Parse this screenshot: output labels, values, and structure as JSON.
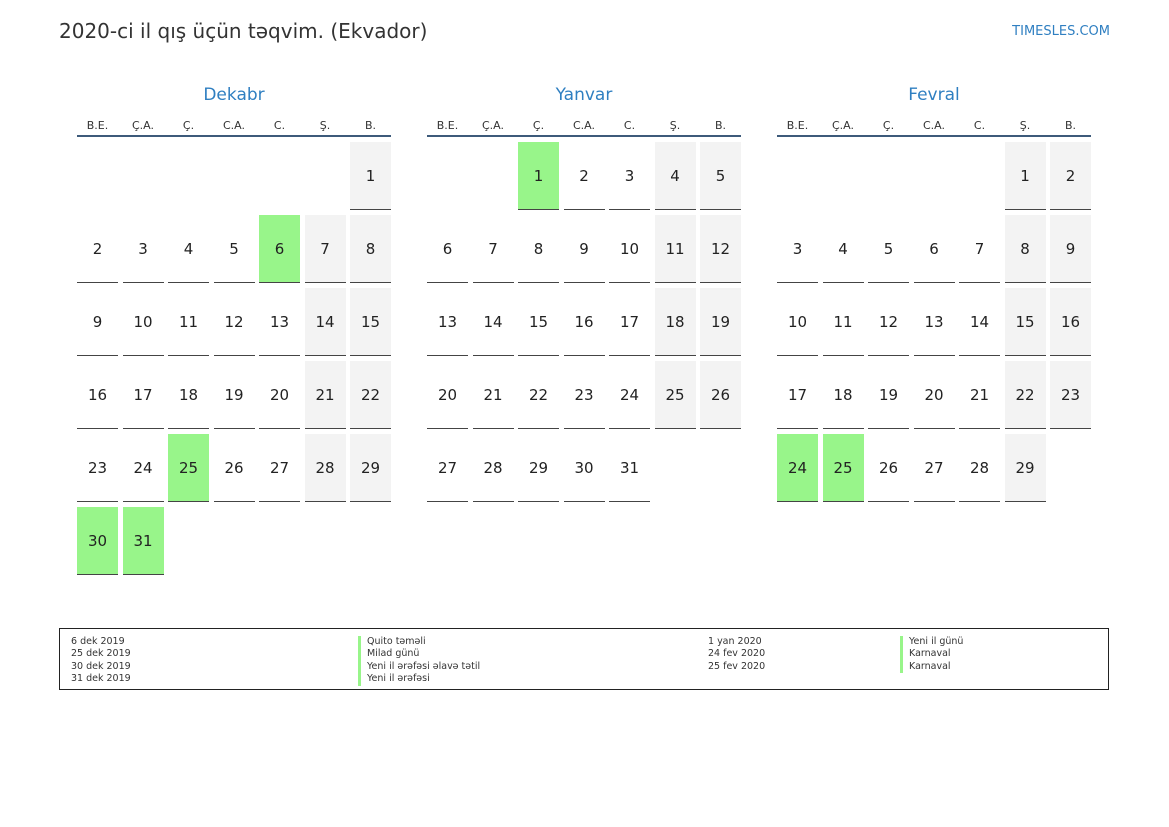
{
  "header": {
    "title": "2020-ci il qış üçün təqvim. (Ekvador)",
    "brand": "TIMESLES.COM"
  },
  "weekdays": [
    "B.E.",
    "Ç.A.",
    "Ç.",
    "C.A.",
    "C.",
    "Ş.",
    "B."
  ],
  "months": [
    {
      "name": "Dekabr",
      "weeks": [
        [
          "",
          "",
          "",
          "",
          "",
          "",
          "1"
        ],
        [
          "2",
          "3",
          "4",
          "5",
          "6",
          "7",
          "8"
        ],
        [
          "9",
          "10",
          "11",
          "12",
          "13",
          "14",
          "15"
        ],
        [
          "16",
          "17",
          "18",
          "19",
          "20",
          "21",
          "22"
        ],
        [
          "23",
          "24",
          "25",
          "26",
          "27",
          "28",
          "29"
        ],
        [
          "30",
          "31",
          "",
          "",
          "",
          "",
          ""
        ]
      ],
      "holidays": [
        "6",
        "25",
        "30",
        "31"
      ]
    },
    {
      "name": "Yanvar",
      "weeks": [
        [
          "",
          "",
          "1",
          "2",
          "3",
          "4",
          "5"
        ],
        [
          "6",
          "7",
          "8",
          "9",
          "10",
          "11",
          "12"
        ],
        [
          "13",
          "14",
          "15",
          "16",
          "17",
          "18",
          "19"
        ],
        [
          "20",
          "21",
          "22",
          "23",
          "24",
          "25",
          "26"
        ],
        [
          "27",
          "28",
          "29",
          "30",
          "31",
          "",
          ""
        ]
      ],
      "holidays": [
        "1"
      ]
    },
    {
      "name": "Fevral",
      "weeks": [
        [
          "",
          "",
          "",
          "",
          "",
          "1",
          "2"
        ],
        [
          "3",
          "4",
          "5",
          "6",
          "7",
          "8",
          "9"
        ],
        [
          "10",
          "11",
          "12",
          "13",
          "14",
          "15",
          "16"
        ],
        [
          "17",
          "18",
          "19",
          "20",
          "21",
          "22",
          "23"
        ],
        [
          "24",
          "25",
          "26",
          "27",
          "28",
          "29",
          ""
        ]
      ],
      "holidays": [
        "24",
        "25"
      ]
    }
  ],
  "legend": {
    "left": [
      {
        "date": "6 dek 2019",
        "name": "Quito təməli"
      },
      {
        "date": "25 dek 2019",
        "name": "Milad günü"
      },
      {
        "date": "30 dek 2019",
        "name": "Yeni il ərəfəsi əlavə tətil"
      },
      {
        "date": "31 dek 2019",
        "name": "Yeni il ərəfəsi"
      }
    ],
    "right": [
      {
        "date": "1 yan 2020",
        "name": "Yeni il günü"
      },
      {
        "date": "24 fev 2020",
        "name": "Karnaval"
      },
      {
        "date": "25 fev 2020",
        "name": "Karnaval"
      }
    ]
  },
  "colors": {
    "holiday": "#98f58a",
    "weekend": "#f3f3f3",
    "accent": "#2f7fc1"
  }
}
